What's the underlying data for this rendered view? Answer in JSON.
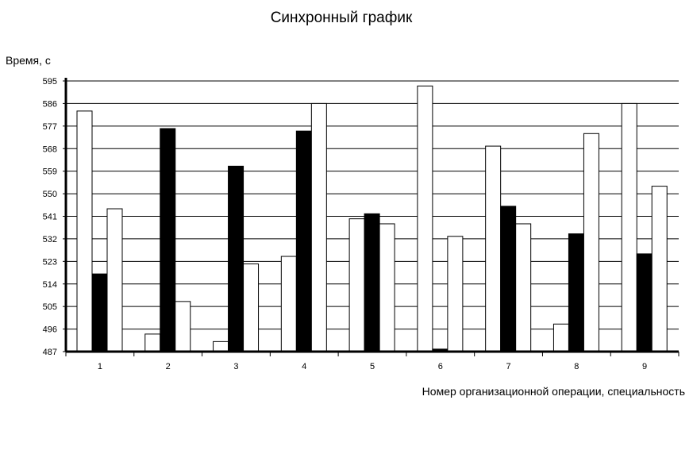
{
  "chart_data": {
    "type": "bar",
    "title": "Синхронный график",
    "xlabel": "Номер организационной операции, специальность",
    "ylabel": "Время, с",
    "categories": [
      "1",
      "2",
      "3",
      "4",
      "5",
      "6",
      "7",
      "8",
      "9"
    ],
    "yticks": [
      "487",
      "496",
      "505",
      "514",
      "523",
      "532",
      "541",
      "550",
      "559",
      "568",
      "577",
      "586",
      "595"
    ],
    "ylim": [
      487,
      595
    ],
    "grid": true,
    "legend": "none",
    "colors": {
      "white_bars": "#ffffff",
      "black_bars": "#000000",
      "outline": "#000000",
      "grid": "#000000"
    },
    "series": [
      {
        "color": "#ffffff",
        "values": [
          583,
          494,
          491,
          525,
          540,
          593,
          569,
          498,
          586
        ]
      },
      {
        "color": "#000000",
        "values": [
          518,
          576,
          561,
          575,
          542,
          488,
          545,
          534,
          526
        ]
      },
      {
        "color": "#ffffff",
        "values": [
          544,
          507,
          522,
          586,
          538,
          533,
          538,
          574,
          553
        ]
      }
    ]
  }
}
